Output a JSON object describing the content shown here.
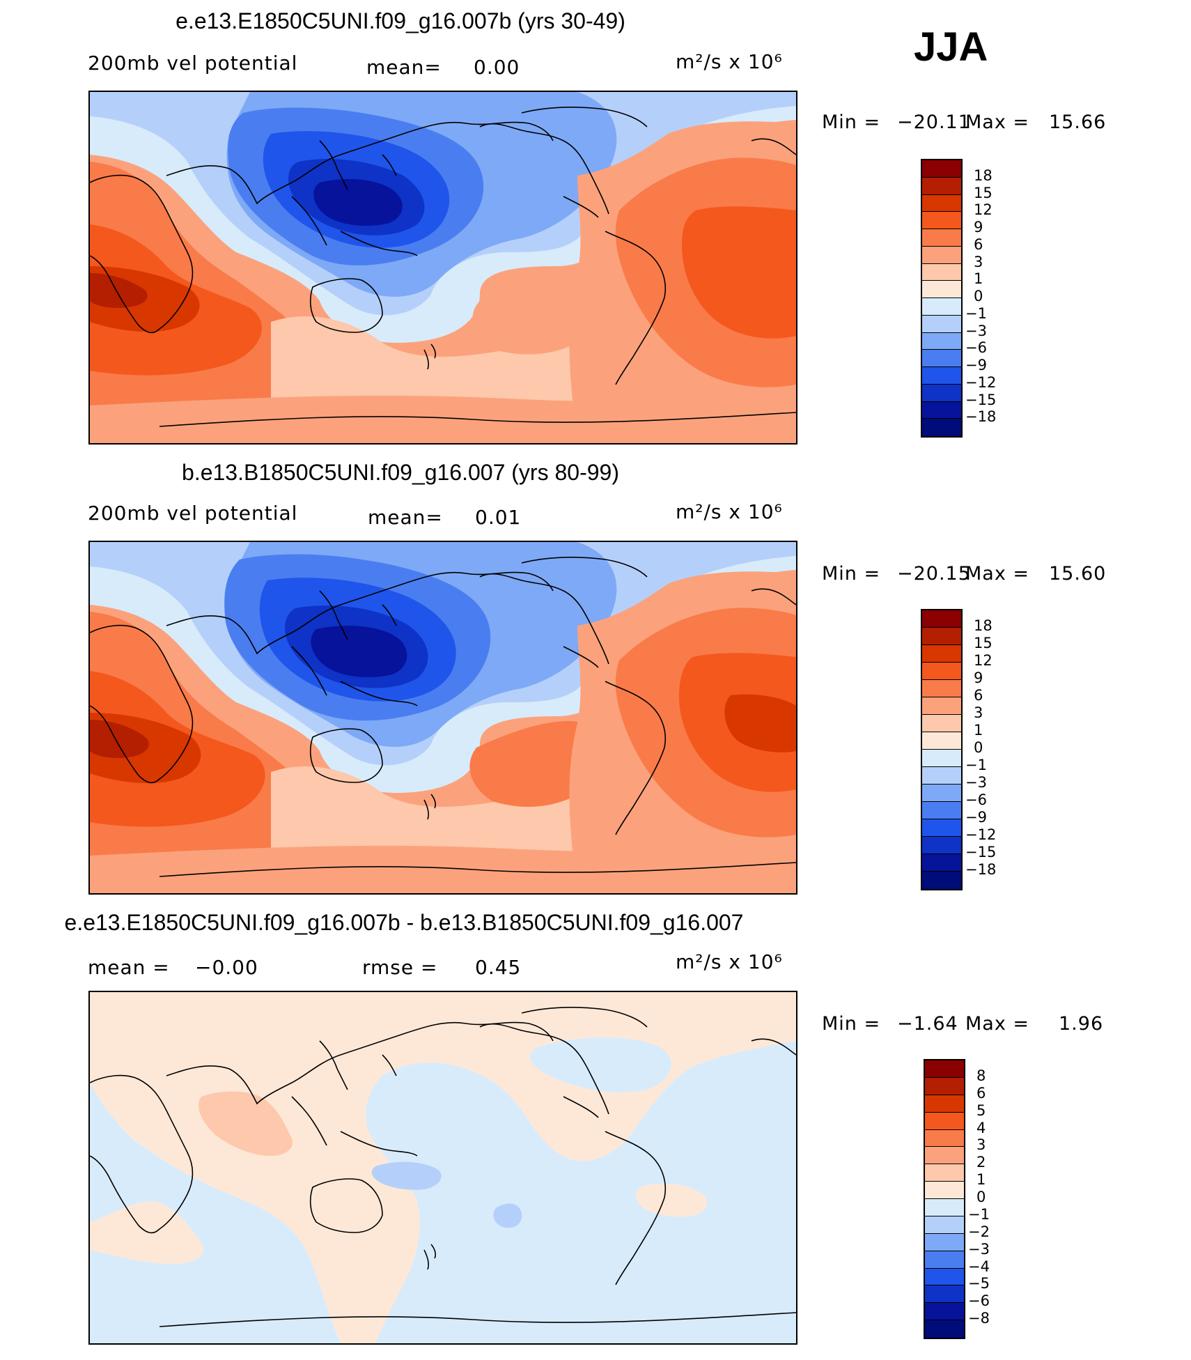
{
  "season": "JJA",
  "panels": [
    {
      "title": "e.e13.E1850C5UNI.f09_g16.007b (yrs 30-49)",
      "left_label": "200mb  vel  potential",
      "stat_name": "mean=",
      "stat_value": "0.00",
      "extra_name": "",
      "extra_value": "",
      "units": "m²/s  x  10⁶",
      "min_label": "Min  =",
      "min_value": "−20.11",
      "max_label": "Max  =",
      "max_value": "15.66",
      "levels": [
        "18",
        "15",
        "12",
        "9",
        "6",
        "3",
        "1",
        "0",
        "−1",
        "−3",
        "−6",
        "−9",
        "−12",
        "−15",
        "−18"
      ],
      "colors": [
        "#8b0000",
        "#b31f00",
        "#d93700",
        "#f4581c",
        "#f97b49",
        "#fba27c",
        "#fdc8ab",
        "#fde8d8",
        "#d8ebfb",
        "#b4d0fa",
        "#7ea9f6",
        "#4a7ef0",
        "#1f55ea",
        "#0e33c6",
        "#06139a",
        "#000c7a"
      ]
    },
    {
      "title": "b.e13.B1850C5UNI.f09_g16.007 (yrs 80-99)",
      "left_label": "200mb  vel  potential",
      "stat_name": "mean=",
      "stat_value": "0.01",
      "extra_name": "",
      "extra_value": "",
      "units": "m²/s  x  10⁶",
      "min_label": "Min  =",
      "min_value": "−20.15",
      "max_label": "Max  =",
      "max_value": "15.60",
      "levels": [
        "18",
        "15",
        "12",
        "9",
        "6",
        "3",
        "1",
        "0",
        "−1",
        "−3",
        "−6",
        "−9",
        "−12",
        "−15",
        "−18"
      ],
      "colors": [
        "#8b0000",
        "#b31f00",
        "#d93700",
        "#f4581c",
        "#f97b49",
        "#fba27c",
        "#fdc8ab",
        "#fde8d8",
        "#d8ebfb",
        "#b4d0fa",
        "#7ea9f6",
        "#4a7ef0",
        "#1f55ea",
        "#0e33c6",
        "#06139a",
        "#000c7a"
      ]
    },
    {
      "title": "e.e13.E1850C5UNI.f09_g16.007b - b.e13.B1850C5UNI.f09_g16.007",
      "left_label": "",
      "stat_name": "mean  =",
      "stat_value": "−0.00",
      "extra_name": "rmse  =",
      "extra_value": "0.45",
      "units": "m²/s  x  10⁶",
      "min_label": "Min  =",
      "min_value": "−1.64",
      "max_label": "Max  =",
      "max_value": "1.96",
      "levels": [
        "8",
        "6",
        "5",
        "4",
        "3",
        "2",
        "1",
        "0",
        "−1",
        "−2",
        "−3",
        "−4",
        "−5",
        "−6",
        "−8"
      ],
      "colors": [
        "#8b0000",
        "#b31f00",
        "#d93700",
        "#f4581c",
        "#f97b49",
        "#fba27c",
        "#fdc8ab",
        "#fde8d8",
        "#d8ebfb",
        "#b4d0fa",
        "#7ea9f6",
        "#4a7ef0",
        "#1f55ea",
        "#0e33c6",
        "#06139a",
        "#000c7a"
      ]
    }
  ]
}
